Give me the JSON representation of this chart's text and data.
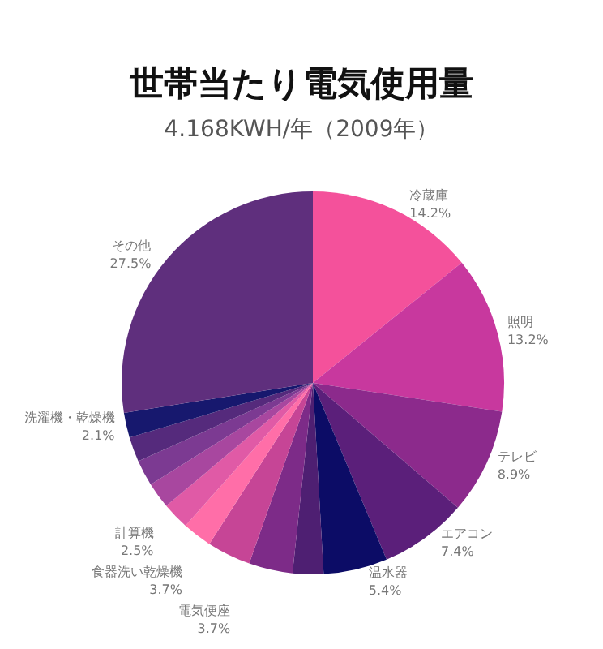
{
  "chart_data": {
    "type": "pie",
    "title": "世帯当たり電気使用量",
    "subtitle": "4.168KWH/年（2009年）",
    "categories": [
      "冷蔵庫",
      "照明",
      "テレビ",
      "エアコン",
      "温水器",
      null,
      "電気便座",
      "食器洗い乾燥機",
      "計算機",
      null,
      null,
      null,
      null,
      "洗濯機・乾燥機",
      "その他"
    ],
    "values": [
      14.2,
      13.2,
      8.9,
      7.4,
      5.4,
      2.6,
      3.7,
      3.7,
      2.5,
      2.3,
      2.2,
      2.2,
      2.1,
      2.1,
      27.5
    ],
    "colors": [
      "#f4519b",
      "#c8389e",
      "#8c2a8c",
      "#5b1f7a",
      "#0c0c66",
      "#4e1f72",
      "#7d2b88",
      "#c64596",
      "#ff6ea8",
      "#e05aa6",
      "#a8479f",
      "#7c3a92",
      "#552a7c",
      "#17186e",
      "#5f2f7d"
    ],
    "value_labels": [
      "14.2%",
      "13.2%",
      "8.9%",
      "7.4%",
      "5.4%",
      null,
      "3.7%",
      "3.7%",
      "2.5%",
      null,
      null,
      null,
      null,
      "2.1%",
      "27.5%"
    ]
  }
}
